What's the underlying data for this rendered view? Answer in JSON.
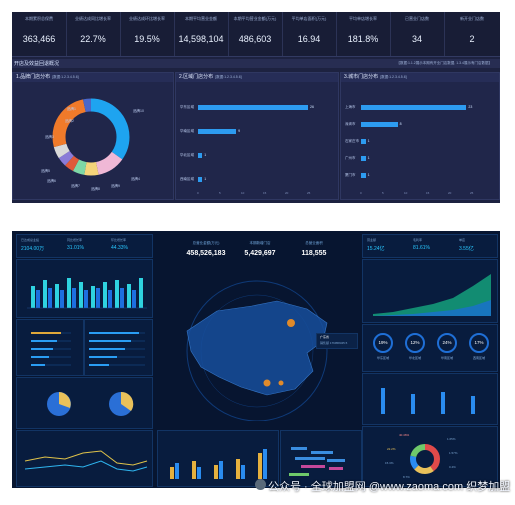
{
  "top": {
    "kpis": [
      {
        "label": "本期累积总保费",
        "value": "363,466"
      },
      {
        "label": "业绩达成同比增长率",
        "value": "22.7%"
      },
      {
        "label": "业绩达成环比增长率",
        "value": "19.5%"
      },
      {
        "label": "本期平均营业金额",
        "value": "14,598,104"
      },
      {
        "label": "本期平均营业金额(万元)",
        "value": "486,603"
      },
      {
        "label": "平均单店面积(万元)",
        "value": "16.94"
      },
      {
        "label": "平均单店增长率",
        "value": "181.8%"
      },
      {
        "label": "已营业门店数",
        "value": "34"
      },
      {
        "label": "新开业门店数",
        "value": "2"
      }
    ],
    "section_title": "开店及效益回退概况",
    "section_note": "【数据:1.1.2展示本期有开业门店数据, 1.3.4展示有门店数据】",
    "panels": {
      "brand": {
        "title": "1.品牌门店分布",
        "note": "[数据:1.2.3.4.5.6]"
      },
      "region": {
        "title": "2.区域门店分布",
        "note": "[数据:1.2.3.4.5.6]"
      },
      "city": {
        "title": "3.城市门店分布",
        "note": "[数据:1.2.3.4.5.6]"
      }
    },
    "donut_labels": [
      "品牌1",
      "品牌2",
      "品牌3",
      "品牌4",
      "品牌5",
      "品牌6",
      "品牌7",
      "品牌8",
      "品牌9",
      "品牌10"
    ],
    "region_bars": {
      "categories": [
        "华东区域",
        "华南区域",
        "华北区域",
        "西南区域"
      ],
      "values": [
        26,
        9,
        1,
        1
      ],
      "ticks": [
        "0",
        "5",
        "10",
        "15",
        "20",
        "25"
      ]
    },
    "city_bars": {
      "categories": [
        "上海市",
        "深圳市",
        "石家庄市",
        "广州市",
        "厦门市"
      ],
      "values": [
        23,
        8,
        1,
        1,
        1
      ],
      "ticks": [
        "0",
        "5",
        "10",
        "15",
        "20",
        "25"
      ]
    }
  },
  "bottom": {
    "kpi_left": [
      {
        "label": "已达成总业绩",
        "value": "2104.00万"
      },
      {
        "label": "同比增长率",
        "value": "31.01%"
      },
      {
        "label": "环比增长率",
        "value": "44.33%"
      }
    ],
    "center_stats": [
      {
        "label": "总营业金额(万元)",
        "value": "458,526,183"
      },
      {
        "label": "本期新增门店",
        "value": "5,429,697"
      },
      {
        "label": "总营业面积",
        "value": "118,555"
      }
    ],
    "kpi_right": [
      {
        "label": "营业额",
        "value": "15.24亿"
      },
      {
        "label": "毛利率",
        "value": "81.61%"
      },
      {
        "label": "单店",
        "value": "3.55亿"
      }
    ],
    "gauges": [
      {
        "value": "19%",
        "label": "华东区域"
      },
      {
        "value": "12%",
        "label": "华北区域"
      },
      {
        "value": "24%",
        "label": "华南区域"
      },
      {
        "value": "17%",
        "label": "西南区域"
      }
    ],
    "map_popup": {
      "title": "广东省",
      "line": "销售额  176958345.5"
    },
    "donut_labels": [
      "40.46%",
      "1.65%",
      "22.2%",
      "1.57%",
      "15.3%",
      "0.4%",
      "8.7%"
    ]
  },
  "watermark": "公众号 · 全球加盟网 @www.zaoma.com",
  "watermark_tail": "织梦加盟"
}
